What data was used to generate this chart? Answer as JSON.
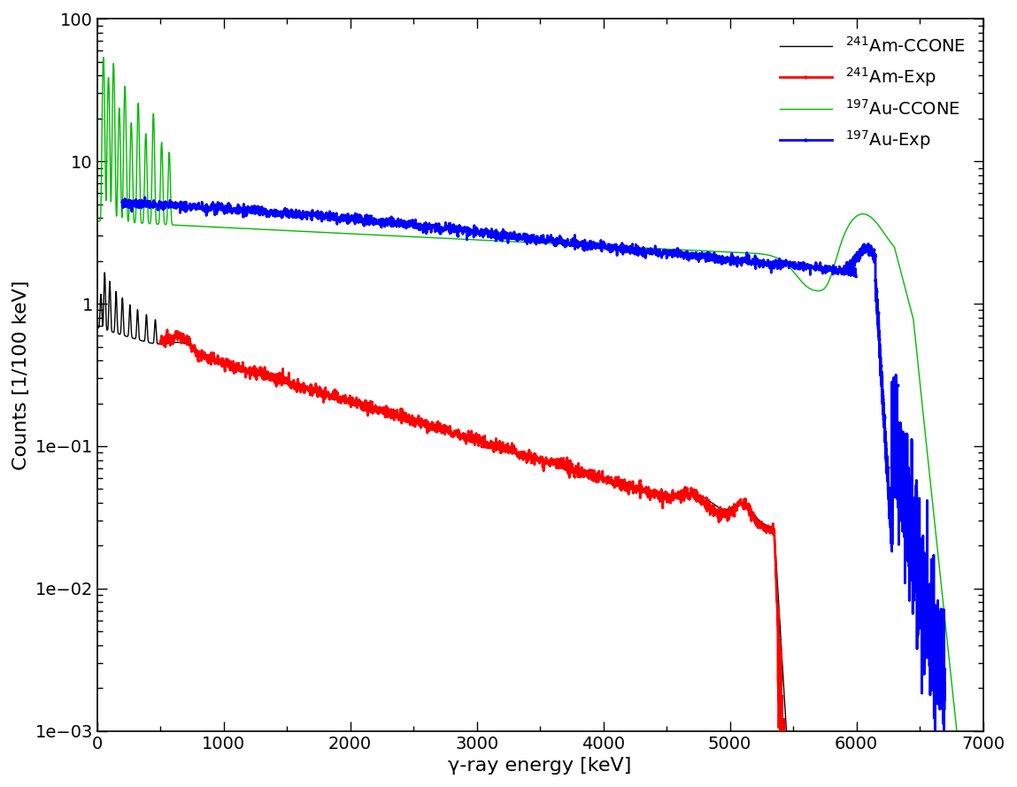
{
  "title": "",
  "xlabel": "γ-ray energy [keV]",
  "ylabel": "Counts [1/100 keV]",
  "xlim": [
    0,
    7000
  ],
  "ylim": [
    0.001,
    100
  ],
  "am_exp_color": "#ff0000",
  "am_ccone_color": "#000000",
  "au_exp_color": "#0000ff",
  "au_ccone_color": "#00bb00",
  "background_color": "#ffffff",
  "tick_fontsize": 14,
  "label_fontsize": 16,
  "legend_fontsize": 14
}
